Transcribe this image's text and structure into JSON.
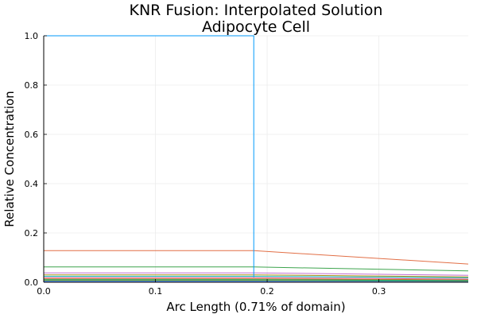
{
  "chart_data": {
    "type": "line",
    "title_line1": "KNR Fusion: Interpolated Solution",
    "title_line2": "Adipocyte Cell",
    "xlabel": "Arc Length (0.71% of domain)",
    "ylabel": "Relative Concentration",
    "xlim": [
      0,
      0.38
    ],
    "ylim": [
      0,
      1.0
    ],
    "x_ticks": [
      0.0,
      0.1,
      0.2,
      0.3
    ],
    "x_tick_labels": [
      "0.0",
      "0.1",
      "0.2",
      "0.3"
    ],
    "y_ticks": [
      0.0,
      0.2,
      0.4,
      0.6,
      0.8,
      1.0
    ],
    "y_tick_labels": [
      "0.0",
      "0.2",
      "0.4",
      "0.6",
      "0.8",
      "1.0"
    ],
    "grid": true,
    "legend": "none",
    "series": [
      {
        "color": "#009AFA",
        "points": [
          [
            0,
            1.0
          ],
          [
            0.188,
            1.0
          ],
          [
            0.188,
            0.02
          ]
        ]
      },
      {
        "color": "#E26F46",
        "points": [
          [
            0,
            0.128
          ],
          [
            0.188,
            0.128
          ],
          [
            0.38,
            0.074
          ]
        ]
      },
      {
        "color": "#3DA44D",
        "points": [
          [
            0,
            0.062
          ],
          [
            0.188,
            0.062
          ],
          [
            0.38,
            0.046
          ]
        ]
      },
      {
        "color": "#C271D2",
        "points": [
          [
            0,
            0.038
          ],
          [
            0.188,
            0.038
          ],
          [
            0.38,
            0.028
          ]
        ]
      },
      {
        "color": "#AC8D18",
        "points": [
          [
            0,
            0.03
          ],
          [
            0.188,
            0.03
          ],
          [
            0.38,
            0.022
          ]
        ]
      },
      {
        "color": "#00A9AD",
        "points": [
          [
            0,
            0.024
          ],
          [
            0.188,
            0.024
          ],
          [
            0.38,
            0.018
          ]
        ]
      },
      {
        "color": "#ED5D92",
        "points": [
          [
            0,
            0.018
          ],
          [
            0.188,
            0.018
          ],
          [
            0.38,
            0.013
          ]
        ]
      },
      {
        "color": "#C68125",
        "points": [
          [
            0,
            0.014
          ],
          [
            0.188,
            0.014
          ],
          [
            0.38,
            0.01
          ]
        ]
      },
      {
        "color": "#00A98D",
        "points": [
          [
            0,
            0.011
          ],
          [
            0.188,
            0.011
          ],
          [
            0.38,
            0.008
          ]
        ]
      },
      {
        "color": "#8E971D",
        "points": [
          [
            0,
            0.008
          ],
          [
            0.188,
            0.008
          ],
          [
            0.38,
            0.006
          ]
        ]
      },
      {
        "color": "#00A9BE",
        "points": [
          [
            0,
            0.006
          ],
          [
            0.188,
            0.006
          ],
          [
            0.38,
            0.004
          ]
        ]
      },
      {
        "color": "#9B7FE9",
        "points": [
          [
            0,
            0.004
          ],
          [
            0.188,
            0.004
          ],
          [
            0.38,
            0.003
          ]
        ]
      },
      {
        "color": "#618DF6",
        "points": [
          [
            0,
            0.002
          ],
          [
            0.188,
            0.002
          ],
          [
            0.38,
            0.001
          ]
        ]
      },
      {
        "color": "#F061DD",
        "points": [
          [
            0,
            0.001
          ],
          [
            0.188,
            0.001
          ],
          [
            0.38,
            0.0005
          ]
        ]
      }
    ]
  }
}
